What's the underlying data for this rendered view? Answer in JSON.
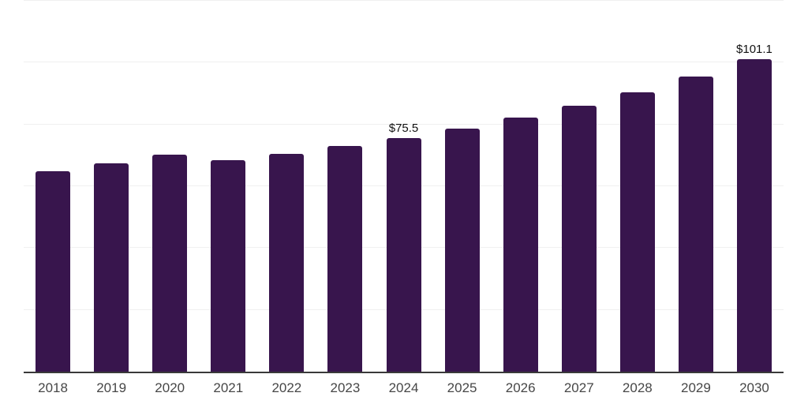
{
  "chart_data": {
    "type": "bar",
    "title": "",
    "xlabel": "",
    "ylabel": "",
    "categories": [
      "2018",
      "2019",
      "2020",
      "2021",
      "2022",
      "2023",
      "2024",
      "2025",
      "2026",
      "2027",
      "2028",
      "2029",
      "2030"
    ],
    "values": [
      64.9,
      67.4,
      70.2,
      68.4,
      70.5,
      73.0,
      75.5,
      78.6,
      82.2,
      86.0,
      90.3,
      95.5,
      101.1
    ],
    "point_labels": {
      "2024": "$75.5",
      "2030": "$101.1"
    },
    "ylim": [
      0,
      120
    ],
    "grid_interval": 20,
    "grid": true,
    "legend": false,
    "y_tick_labels_visible": false,
    "colors": {
      "bar": "#38154d",
      "gridline": "#f0f0f0",
      "axis_line": "#3a3a3a",
      "tick_label": "#474747",
      "value_label": "#111111",
      "background": "#ffffff"
    }
  }
}
